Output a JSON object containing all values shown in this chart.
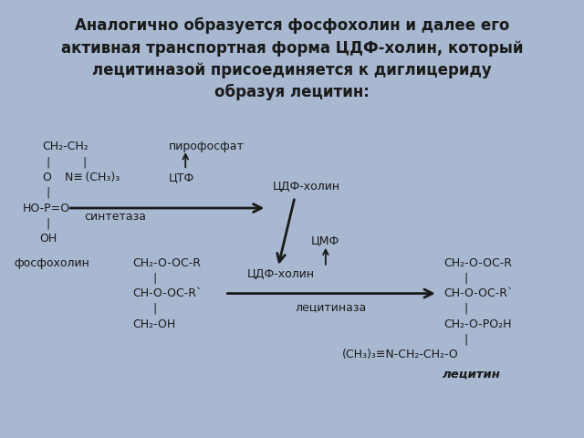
{
  "title_lines": [
    "Аналогично образуется фосфохолин и далее его",
    "активная транспортная форма ЦДФ-холин, который",
    "лецитиназой присоединяется к диглицериду",
    "образуя лецитин:"
  ],
  "title_bg": "#a8b8d0",
  "diagram_bg": "#ffffff",
  "outer_bg": "#a8b8d0",
  "text_color": "#1a1a1a",
  "arrow_color": "#111111",
  "title_fontsize": 12,
  "fs": 9.0
}
